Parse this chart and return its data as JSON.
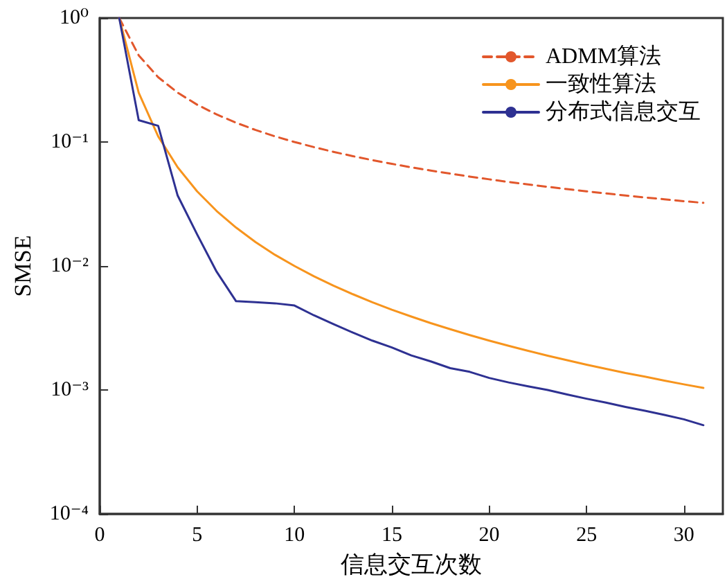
{
  "chart_data": {
    "type": "line",
    "xlabel": "信息交互次数",
    "ylabel": "SMSE",
    "x": [
      1,
      2,
      3,
      4,
      5,
      6,
      7,
      8,
      9,
      10,
      11,
      12,
      13,
      14,
      15,
      16,
      17,
      18,
      19,
      20,
      21,
      22,
      23,
      24,
      25,
      26,
      27,
      28,
      29,
      30,
      31
    ],
    "series": [
      {
        "name": "ADMM算法",
        "color": "#e2572c",
        "line_style": "dashed",
        "values": [
          1,
          0.5,
          0.333,
          0.25,
          0.2,
          0.167,
          0.143,
          0.125,
          0.111,
          0.1,
          0.0909,
          0.0833,
          0.0769,
          0.0714,
          0.0667,
          0.0625,
          0.0588,
          0.0556,
          0.0526,
          0.05,
          0.0476,
          0.0455,
          0.0435,
          0.0417,
          0.04,
          0.0385,
          0.037,
          0.0357,
          0.0345,
          0.0333,
          0.0323
        ]
      },
      {
        "name": "一致性算法",
        "color": "#f7941d",
        "line_style": "solid",
        "values": [
          1,
          0.25,
          0.111,
          0.0625,
          0.04,
          0.0278,
          0.0204,
          0.0156,
          0.0123,
          0.01,
          0.00826,
          0.00694,
          0.00592,
          0.0051,
          0.00444,
          0.00391,
          0.00346,
          0.00309,
          0.00277,
          0.0025,
          0.00227,
          0.00207,
          0.00189,
          0.00174,
          0.0016,
          0.00148,
          0.00137,
          0.00128,
          0.00119,
          0.00111,
          0.00104
        ]
      },
      {
        "name": "分布式信息交互",
        "color": "#2e3192",
        "line_style": "solid",
        "values": [
          1,
          0.15,
          0.135,
          0.037,
          0.018,
          0.009,
          0.0052,
          0.0051,
          0.005,
          0.0048,
          0.004,
          0.0034,
          0.0029,
          0.0025,
          0.0022,
          0.0019,
          0.0017,
          0.0015,
          0.0014,
          0.00125,
          0.00115,
          0.00107,
          0.001,
          0.00092,
          0.00085,
          0.00079,
          0.00073,
          0.00068,
          0.00063,
          0.00058,
          0.00052
        ]
      }
    ],
    "log": "y",
    "xlim": [
      0,
      32
    ],
    "xticks": [
      0,
      5,
      10,
      15,
      20,
      25,
      30
    ],
    "ylim": [
      0.0001,
      1
    ],
    "yticks": [
      {
        "value": 0.0001,
        "label": "10⁻⁴"
      },
      {
        "value": 0.001,
        "label": "10⁻³"
      },
      {
        "value": 0.01,
        "label": "10⁻²"
      },
      {
        "value": 0.1,
        "label": "10⁻¹"
      },
      {
        "value": 1,
        "label": "10⁰"
      }
    ],
    "grid": false,
    "legend": "top right",
    "marker": "none"
  }
}
